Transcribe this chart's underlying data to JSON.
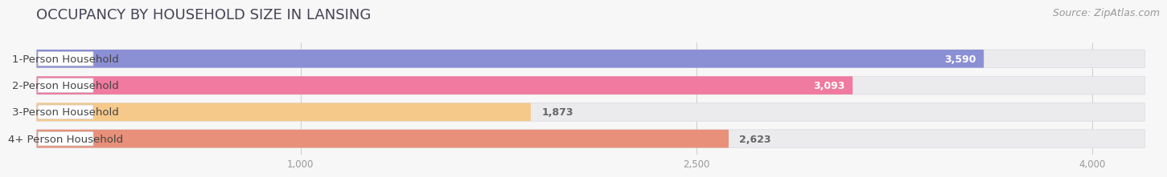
{
  "title": "OCCUPANCY BY HOUSEHOLD SIZE IN LANSING",
  "source": "Source: ZipAtlas.com",
  "categories": [
    "1-Person Household",
    "2-Person Household",
    "3-Person Household",
    "4+ Person Household"
  ],
  "values": [
    3590,
    3093,
    1873,
    2623
  ],
  "bar_colors": [
    "#8b8fd4",
    "#f07aa0",
    "#f5c98a",
    "#e8907a"
  ],
  "label_colors": [
    "white",
    "white",
    "#777777",
    "#777777"
  ],
  "xlim": [
    0,
    4200
  ],
  "xmin": 0,
  "xmax": 4200,
  "xticks": [
    1000,
    2500,
    4000
  ],
  "xtick_labels": [
    "1,000",
    "2,500",
    "4,000"
  ],
  "title_fontsize": 13,
  "source_fontsize": 9,
  "bar_label_fontsize": 9,
  "category_fontsize": 9.5,
  "background_color": "#f7f7f7",
  "bar_bg_color": "#ebebee",
  "bar_height": 0.68,
  "white_label_bg": "#ffffff"
}
